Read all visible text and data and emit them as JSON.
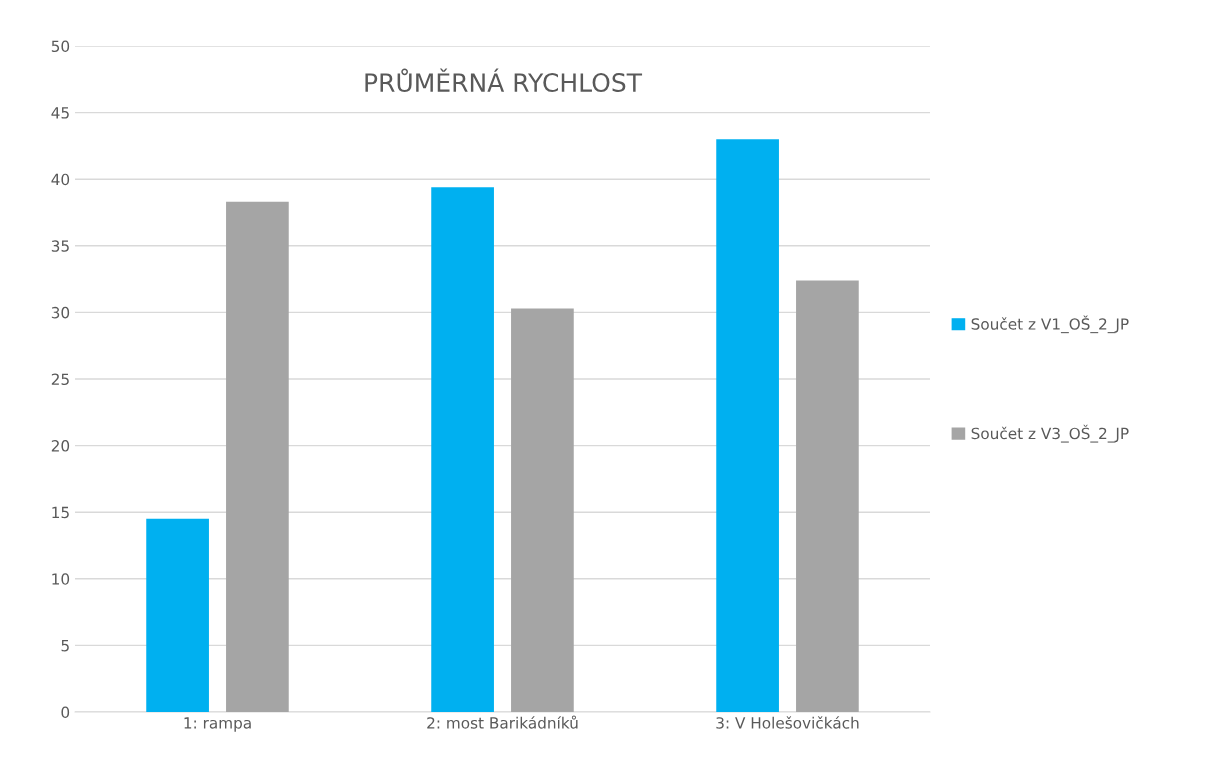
{
  "chart_data": {
    "type": "bar",
    "title": "PRŮMĚRNÁ RYCHLOST",
    "categories": [
      "1: rampa",
      "2: most Barikádníků",
      "3: V Holešovičkách"
    ],
    "series": [
      {
        "name": "Součet z V1_OŠ_2_JP",
        "color": "#00b0f0",
        "values": [
          14.5,
          39.4,
          43.0
        ]
      },
      {
        "name": "Součet z V3_OŠ_2_JP",
        "color": "#a5a5a5",
        "values": [
          38.3,
          30.3,
          32.4
        ]
      }
    ],
    "ylim": [
      0,
      50
    ],
    "yticks": [
      0,
      5,
      10,
      15,
      20,
      25,
      30,
      35,
      40,
      45,
      50
    ],
    "grid": "y",
    "legend": "right"
  }
}
